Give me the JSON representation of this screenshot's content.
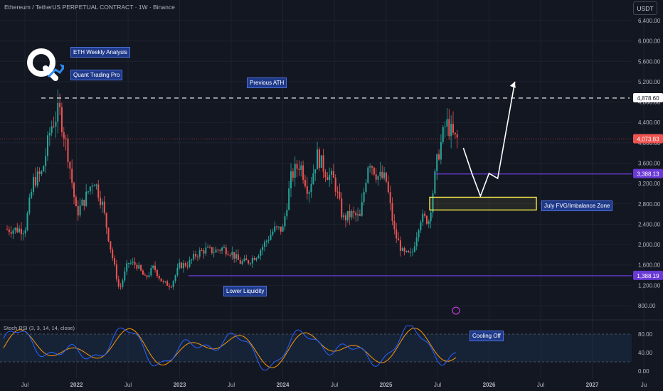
{
  "header": {
    "title": "Ethereum / TetherUS PERPETUAL CONTRACT · 1W · Binance",
    "currency": "USDT"
  },
  "annotations": {
    "brand_title": "ETH Weekly Analysis",
    "brand_sub": "Quant Trading Pro",
    "previous_ath": "Previous ATH",
    "fvg_zone": "July FVG/Imbalance Zone",
    "lower_liquidity": "Lower Liquidity",
    "cooling_off": "Cooling Off"
  },
  "colors": {
    "background": "#131722",
    "up": "#26a69a",
    "down": "#ef5350",
    "level_line": "#6a3ad6",
    "fvg_box": "#f5e94a",
    "projection": "#ffffff",
    "stoch_k": "#2962ff",
    "stoch_d": "#ff9800",
    "stoch_band": "#1e3a5f"
  },
  "chart_data": {
    "type": "line",
    "title": "Ethereum / TetherUS PERPETUAL CONTRACT · 1W · Binance",
    "candlestick": true,
    "x_axis_ticks": [
      "Jul",
      "2022",
      "Jul",
      "2023",
      "Jul",
      "2024",
      "Jul",
      "2025",
      "Jul",
      "2026",
      "Jul",
      "2027",
      "Ju"
    ],
    "y_axis_ticks": [
      "6,400.00",
      "6,000.00",
      "5,600.00",
      "5,200.00",
      "4,800.00",
      "4,400.00",
      "4,000.00",
      "3,600.00",
      "3,200.00",
      "2,800.00",
      "2,400.00",
      "2,000.00",
      "1,600.00",
      "1,200.00",
      "800.00"
    ],
    "ylim": [
      640,
      6700
    ],
    "price_labels": [
      {
        "value": "4,878.60",
        "meaning": "Previous ATH"
      },
      {
        "value": "4,073.83",
        "meaning": "Last price"
      },
      {
        "value": "3,388.13",
        "meaning": "Support level"
      },
      {
        "value": "1,388.19",
        "meaning": "Lower Liquidity"
      }
    ],
    "weekly_close_path": [
      [
        "2021-07",
        2300
      ],
      [
        "2021-08",
        3250
      ],
      [
        "2021-09",
        3400
      ],
      [
        "2021-10",
        4300
      ],
      [
        "2021-11",
        4650
      ],
      [
        "2021-12",
        3800
      ],
      [
        "2022-01",
        2600
      ],
      [
        "2022-02",
        2900
      ],
      [
        "2022-03",
        3300
      ],
      [
        "2022-04",
        2800
      ],
      [
        "2022-05",
        1900
      ],
      [
        "2022-06",
        1100
      ],
      [
        "2022-07",
        1650
      ],
      [
        "2022-08",
        1600
      ],
      [
        "2022-09",
        1330
      ],
      [
        "2022-10",
        1560
      ],
      [
        "2022-11",
        1250
      ],
      [
        "2022-12",
        1200
      ],
      [
        "2023-01",
        1590
      ],
      [
        "2023-02",
        1620
      ],
      [
        "2023-03",
        1820
      ],
      [
        "2023-04",
        1900
      ],
      [
        "2023-05",
        1870
      ],
      [
        "2023-06",
        1930
      ],
      [
        "2023-07",
        1850
      ],
      [
        "2023-08",
        1650
      ],
      [
        "2023-09",
        1670
      ],
      [
        "2023-10",
        1800
      ],
      [
        "2023-11",
        2050
      ],
      [
        "2023-12",
        2300
      ],
      [
        "2024-01",
        2300
      ],
      [
        "2024-02",
        3350
      ],
      [
        "2024-03",
        3600
      ],
      [
        "2024-04",
        3050
      ],
      [
        "2024-05",
        3750
      ],
      [
        "2024-06",
        3430
      ],
      [
        "2024-07",
        3250
      ],
      [
        "2024-08",
        2500
      ],
      [
        "2024-09",
        2600
      ],
      [
        "2024-10",
        2520
      ],
      [
        "2024-11",
        3700
      ],
      [
        "2024-12",
        3350
      ],
      [
        "2025-01",
        3280
      ],
      [
        "2025-02",
        2230
      ],
      [
        "2025-03",
        1820
      ],
      [
        "2025-04",
        1790
      ],
      [
        "2025-05",
        2530
      ],
      [
        "2025-06",
        2480
      ],
      [
        "2025-07",
        3700
      ],
      [
        "2025-08",
        4400
      ],
      [
        "2025-09",
        4073.83
      ]
    ],
    "levels": {
      "previous_ath": 4878.6,
      "support": 3388.13,
      "lower_liquidity": 1388.19
    },
    "fvg_zone": {
      "from": 2680,
      "to": 2930
    },
    "projection": [
      [
        "2025-10",
        3900
      ],
      [
        "2025-11",
        3400
      ],
      [
        "2025-12",
        2950
      ],
      [
        "2026-01",
        3400
      ],
      [
        "2026-02",
        3300
      ],
      [
        "2026-04",
        5200
      ]
    ],
    "indicator": {
      "name": "Stoch RSI (3, 3, 14, 14, close)",
      "y_axis_ticks": [
        "80.00",
        "40.00",
        "0.00"
      ],
      "ylim": [
        0,
        100
      ],
      "bands": [
        20,
        80
      ]
    }
  }
}
